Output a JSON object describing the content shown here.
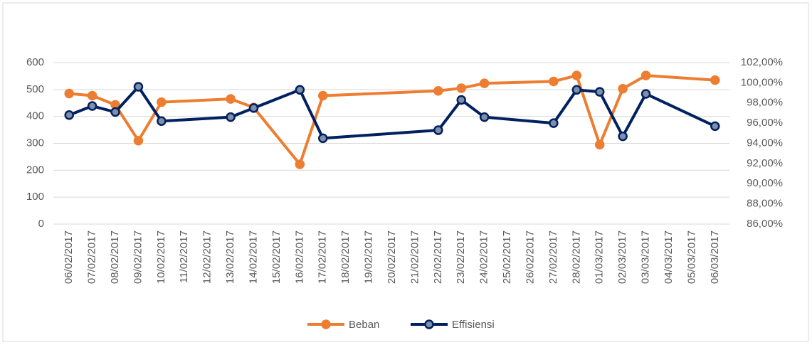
{
  "chart_data": {
    "type": "line",
    "categories": [
      "06/02/2017",
      "07/02/2017",
      "08/02/2017",
      "09/02/2017",
      "10/02/2017",
      "11/02/2017",
      "12/02/2017",
      "13/02/2017",
      "14/02/2017",
      "15/02/2017",
      "16/02/2017",
      "17/02/2017",
      "18/02/2017",
      "19/02/2017",
      "20/02/2017",
      "21/02/2017",
      "22/02/2017",
      "23/02/2017",
      "24/02/2017",
      "25/02/2017",
      "26/02/2017",
      "27/02/2017",
      "28/02/2017",
      "01/03/2017",
      "02/03/2017",
      "03/03/2017",
      "04/03/2017",
      "05/03/2017",
      "06/03/2017"
    ],
    "series": [
      {
        "name": "Beban",
        "color": "#ed7d31",
        "x": [
          "06/02/2017",
          "07/02/2017",
          "08/02/2017",
          "09/02/2017",
          "10/02/2017",
          "13/02/2017",
          "14/02/2017",
          "16/02/2017",
          "17/02/2017",
          "22/02/2017",
          "23/02/2017",
          "24/02/2017",
          "27/02/2017",
          "28/02/2017",
          "01/03/2017",
          "02/03/2017",
          "03/03/2017",
          "06/03/2017"
        ],
        "values": [
          485,
          477,
          443,
          310,
          453,
          465,
          433,
          222,
          477,
          495,
          505,
          523,
          530,
          552,
          295,
          503,
          552,
          535
        ]
      },
      {
        "name": "Effisiensi",
        "color": "#002060",
        "axis": "y2",
        "x": [
          "06/02/2017",
          "07/02/2017",
          "08/02/2017",
          "09/02/2017",
          "10/02/2017",
          "13/02/2017",
          "14/02/2017",
          "16/02/2017",
          "17/02/2017",
          "22/02/2017",
          "23/02/2017",
          "24/02/2017",
          "27/02/2017",
          "28/02/2017",
          "01/03/2017",
          "02/03/2017",
          "03/03/2017",
          "06/03/2017"
        ],
        "values": [
          96.8,
          97.7,
          97.1,
          99.6,
          96.2,
          96.6,
          97.5,
          99.3,
          94.5,
          95.3,
          98.3,
          96.6,
          96.0,
          99.3,
          99.1,
          94.7,
          98.9,
          95.7
        ]
      }
    ],
    "ylim": [
      0,
      600
    ],
    "yticks": [
      0,
      100,
      200,
      300,
      400,
      500,
      600
    ],
    "y2lim": [
      86,
      102
    ],
    "y2ticks": [
      {
        "value": 86,
        "label": "86,00%"
      },
      {
        "value": 88,
        "label": "88,00%"
      },
      {
        "value": 90,
        "label": "90,00%"
      },
      {
        "value": 92,
        "label": "92,00%"
      },
      {
        "value": 94,
        "label": "94,00%"
      },
      {
        "value": 96,
        "label": "96,00%"
      },
      {
        "value": 98,
        "label": "98,00%"
      },
      {
        "value": 100,
        "label": "100,00%"
      },
      {
        "value": 102,
        "label": "102,00%"
      }
    ],
    "grid": true,
    "legend": "bottom"
  }
}
